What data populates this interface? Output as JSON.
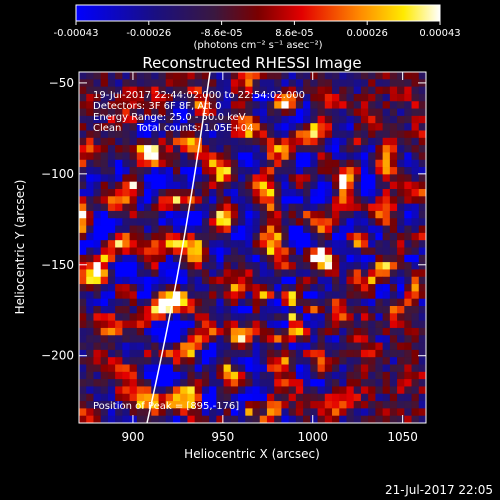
{
  "chart_data": {
    "type": "heatmap",
    "title": "Reconstructed RHESSI Image",
    "xlabel": "Heliocentric X (arcsec)",
    "ylabel": "Heliocentric Y (arcsec)",
    "xlim": [
      870,
      1063
    ],
    "ylim": [
      -237,
      -44
    ],
    "x_ticks": [
      900,
      950,
      1000,
      1050
    ],
    "y_ticks": [
      -50,
      -100,
      -150,
      -200
    ],
    "colorbar": {
      "ticks": [
        "-0.00043",
        "-0.00026",
        "-8.6e-05",
        "8.6e-05",
        "0.00026",
        "0.00043"
      ],
      "range": [
        -0.00043,
        0.00043
      ],
      "label": "(photons cm⁻² s⁻¹ asec⁻²)",
      "colormap": "blue-purple-red-yellow-white"
    },
    "annotations": [
      "19-Jul-2017 22:44:02.000 to 22:54:02.000",
      "Detectors: 3F 6F 8F, Att 0",
      "Energy Range: 25.0 - 50.0 keV",
      "Clean     Total counts: 1.05E+04"
    ],
    "peak_label": "Position of Peak = [895,-176]",
    "peak": [
      895,
      -176
    ],
    "limb": "solar limb arc crossing the field from lower left to upper right",
    "grid": false,
    "legend": "none"
  },
  "footer": {
    "timestamp": "21-Jul-2017 22:05"
  }
}
